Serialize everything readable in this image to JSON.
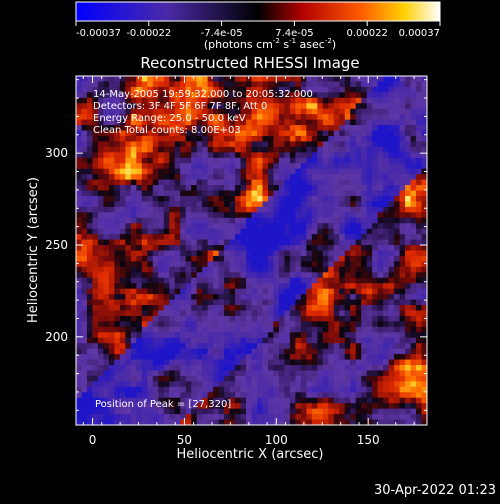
{
  "colorbar": {
    "ticks": [
      "-0.00037",
      "-0.00022",
      "-7.4e-05",
      "7.4e-05",
      "0.00022",
      "0.00037"
    ],
    "range": [
      -0.00037,
      0.00037
    ],
    "units_prefix": "(photons cm",
    "units_exp1": "-2",
    "units_mid": " s",
    "units_exp2": "-1",
    "units_mid2": " asec",
    "units_exp3": "-2",
    "units_suffix": ")"
  },
  "chart_data": {
    "type": "heatmap",
    "title": "Reconstructed RHESSI Image",
    "xlabel": "Heliocentric X (arcsec)",
    "ylabel": "Heliocentric Y (arcsec)",
    "xlim": [
      -9,
      182
    ],
    "ylim": [
      152,
      342
    ],
    "x_ticks": [
      0,
      50,
      100,
      150
    ],
    "y_ticks": [
      200,
      250,
      300
    ],
    "x_tick_labels": [
      "0",
      "50",
      "100",
      "150"
    ],
    "y_tick_labels": [
      "200",
      "250",
      "300"
    ],
    "peak_position": [
      27,
      320
    ],
    "annotations": [
      "14-May-2005 19:59:32.000 to 20:05:32.000",
      "Detectors: 3F 4F 5F 6F 7F 8F, Att 0",
      "Energy Range: 25.0 - 50.0 keV",
      "Clean    Total counts: 8.00E+03"
    ],
    "peak_label": "Position of Peak = [27,320]"
  },
  "footer": {
    "timestamp": "30-Apr-2022 01:23"
  },
  "colors": {
    "background": "#000000",
    "axis": "#ffffff",
    "low": "#0000ff",
    "mid_low": "#5a2aa8",
    "zero": "#000000",
    "mid_high": "#ff3a00",
    "high": "#ffffff"
  }
}
